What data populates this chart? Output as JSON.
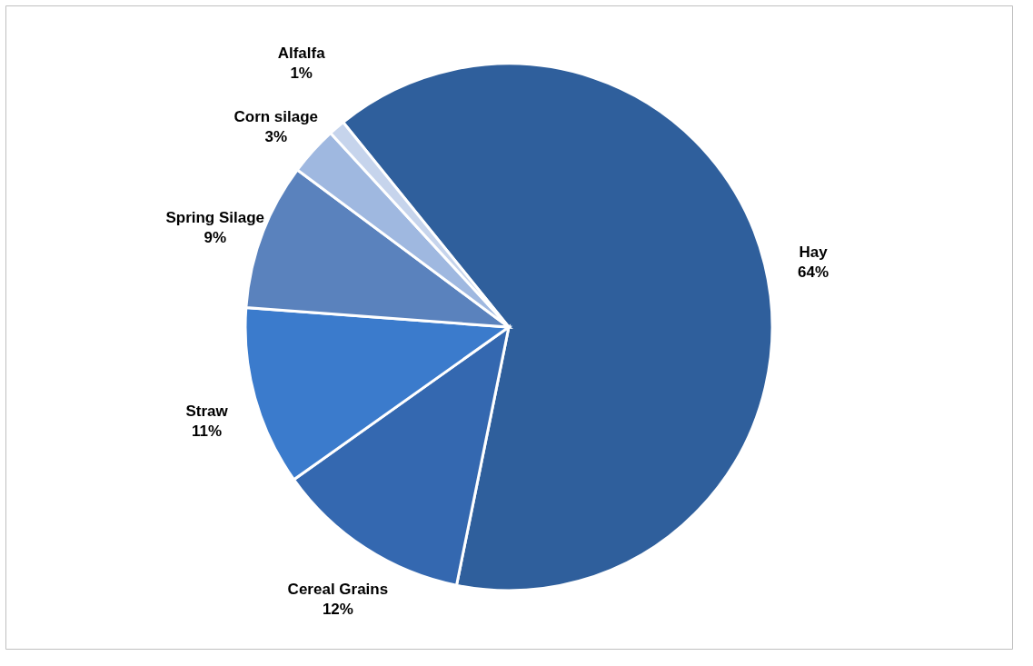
{
  "chart_data": {
    "type": "pie",
    "value_labels": [
      "64%",
      "12%",
      "11%",
      "9%",
      "3%",
      "1%"
    ],
    "categories": [
      "Hay",
      "Cereal Grains",
      "Straw",
      "Spring Silage",
      "Corn silage",
      "Alfalfa"
    ],
    "values": [
      64,
      12,
      11,
      9,
      3,
      1
    ],
    "colors": [
      "#2f5f9c",
      "#3468b0",
      "#3b7bcc",
      "#5a82bd",
      "#9fb8e0",
      "#c6d4ec"
    ]
  }
}
